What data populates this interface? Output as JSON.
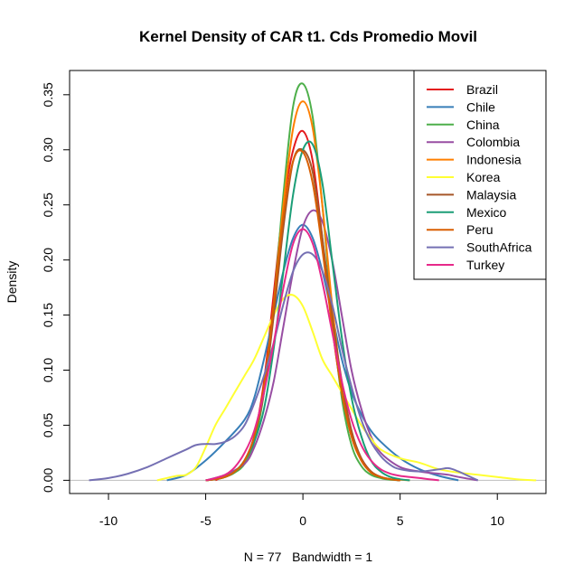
{
  "chart_data": {
    "type": "line",
    "title": "Kernel Density of CAR t1. Cds Promedio Movil",
    "xlabel": "N = 77   Bandwidth = 1",
    "ylabel": "Density",
    "xlim": [
      -12,
      12.5
    ],
    "ylim": [
      -0.012,
      0.372
    ],
    "x_ticks": [
      -10,
      -5,
      0,
      5,
      10
    ],
    "x_tick_labels": [
      "-10",
      "-5",
      "0",
      "5",
      "10"
    ],
    "y_ticks": [
      0.0,
      0.05,
      0.1,
      0.15,
      0.2,
      0.25,
      0.3,
      0.35
    ],
    "y_tick_labels": [
      "0.00",
      "0.05",
      "0.10",
      "0.15",
      "0.20",
      "0.25",
      "0.30",
      "0.35"
    ],
    "baseline": 0,
    "baseline_color": "#bebebe",
    "legend_position": "top-right",
    "series": [
      {
        "name": "Brazil",
        "color": "#e41a1c",
        "x": [
          -4.5,
          -4,
          -3.5,
          -3,
          -2.5,
          -2,
          -1.5,
          -1,
          -0.5,
          0,
          0.5,
          1,
          1.5,
          2,
          2.5,
          3,
          3.5,
          4,
          4.5,
          5
        ],
        "y": [
          0.0,
          0.004,
          0.008,
          0.018,
          0.04,
          0.09,
          0.17,
          0.25,
          0.3,
          0.317,
          0.29,
          0.22,
          0.14,
          0.08,
          0.04,
          0.02,
          0.008,
          0.003,
          0.001,
          0.0
        ]
      },
      {
        "name": "Chile",
        "color": "#377eb8",
        "x": [
          -7,
          -6,
          -5,
          -4,
          -3,
          -2.5,
          -2,
          -1.5,
          -1,
          -0.5,
          0,
          0.5,
          1,
          1.5,
          2,
          2.5,
          3,
          3.5,
          4,
          5,
          6,
          7,
          8
        ],
        "y": [
          0.0,
          0.005,
          0.018,
          0.035,
          0.055,
          0.075,
          0.11,
          0.15,
          0.19,
          0.22,
          0.232,
          0.22,
          0.19,
          0.15,
          0.11,
          0.08,
          0.06,
          0.045,
          0.035,
          0.02,
          0.01,
          0.004,
          0.0
        ]
      },
      {
        "name": "China",
        "color": "#4daf4a",
        "x": [
          -5,
          -4.5,
          -4,
          -3.5,
          -3,
          -2.5,
          -2,
          -1.5,
          -1,
          -0.5,
          0,
          0.5,
          1,
          1.5,
          2,
          2.5,
          3,
          3.5,
          4,
          4.5,
          5
        ],
        "y": [
          0.0,
          0.001,
          0.003,
          0.007,
          0.015,
          0.035,
          0.08,
          0.16,
          0.26,
          0.34,
          0.36,
          0.33,
          0.25,
          0.15,
          0.075,
          0.032,
          0.013,
          0.005,
          0.002,
          0.0005,
          0.0
        ]
      },
      {
        "name": "Colombia",
        "color": "#984ea3",
        "x": [
          -5,
          -4,
          -3,
          -2.5,
          -2,
          -1.5,
          -1,
          -0.5,
          0,
          0.5,
          1,
          1.5,
          2,
          2.5,
          3,
          3.5,
          4,
          5,
          6,
          7,
          7.5,
          8,
          9
        ],
        "y": [
          0.0,
          0.005,
          0.015,
          0.03,
          0.055,
          0.09,
          0.14,
          0.19,
          0.23,
          0.245,
          0.235,
          0.2,
          0.15,
          0.1,
          0.065,
          0.04,
          0.025,
          0.012,
          0.008,
          0.006,
          0.005,
          0.003,
          0.0
        ]
      },
      {
        "name": "Indonesia",
        "color": "#ff7f00",
        "x": [
          -5,
          -4.5,
          -4,
          -3.5,
          -3,
          -2.5,
          -2,
          -1.5,
          -1,
          -0.5,
          0,
          0.5,
          1,
          1.5,
          2,
          2.5,
          3,
          3.5,
          4,
          4.5,
          5,
          5.5
        ],
        "y": [
          0.0,
          0.001,
          0.003,
          0.008,
          0.018,
          0.04,
          0.085,
          0.16,
          0.25,
          0.32,
          0.344,
          0.32,
          0.25,
          0.16,
          0.085,
          0.04,
          0.018,
          0.008,
          0.003,
          0.001,
          0.0005,
          0.0
        ]
      },
      {
        "name": "Korea",
        "color": "#ffff33",
        "x": [
          -7.5,
          -6.5,
          -6,
          -5.5,
          -5,
          -4.5,
          -4,
          -3.5,
          -3,
          -2.5,
          -2,
          -1.5,
          -1,
          -0.5,
          0,
          0.5,
          1,
          1.5,
          2,
          2.5,
          3,
          3.5,
          4,
          5,
          6,
          7,
          8,
          9,
          10,
          11,
          12
        ],
        "y": [
          0.0,
          0.004,
          0.005,
          0.012,
          0.03,
          0.05,
          0.065,
          0.08,
          0.095,
          0.11,
          0.13,
          0.15,
          0.165,
          0.168,
          0.158,
          0.135,
          0.11,
          0.095,
          0.08,
          0.065,
          0.05,
          0.038,
          0.028,
          0.02,
          0.016,
          0.01,
          0.007,
          0.005,
          0.003,
          0.001,
          0.0
        ]
      },
      {
        "name": "Malaysia",
        "color": "#a65628",
        "x": [
          -5,
          -4.5,
          -4,
          -3.5,
          -3,
          -2.5,
          -2,
          -1.5,
          -1,
          -0.5,
          0,
          0.5,
          1,
          1.5,
          2,
          2.5,
          3,
          3.5,
          4,
          4.5,
          5
        ],
        "y": [
          0.0,
          0.001,
          0.003,
          0.008,
          0.018,
          0.04,
          0.08,
          0.15,
          0.23,
          0.29,
          0.3,
          0.28,
          0.22,
          0.15,
          0.09,
          0.045,
          0.02,
          0.008,
          0.003,
          0.001,
          0.0
        ]
      },
      {
        "name": "Mexico",
        "color": "#1b9e77",
        "x": [
          -5,
          -4.5,
          -4,
          -3.5,
          -3,
          -2.5,
          -2,
          -1.5,
          -1,
          -0.5,
          0,
          0.5,
          1,
          1.5,
          2,
          2.5,
          3,
          3.5,
          4,
          4.5,
          5,
          5.5
        ],
        "y": [
          0.0,
          0.001,
          0.003,
          0.008,
          0.018,
          0.035,
          0.065,
          0.12,
          0.19,
          0.26,
          0.3,
          0.305,
          0.27,
          0.2,
          0.13,
          0.075,
          0.04,
          0.018,
          0.008,
          0.003,
          0.001,
          0.0
        ]
      },
      {
        "name": "Peru",
        "color": "#d95f02",
        "x": [
          -5,
          -4.5,
          -4,
          -3.5,
          -3,
          -2.5,
          -2,
          -1.5,
          -1,
          -0.5,
          0,
          0.5,
          1,
          1.5,
          2,
          2.5,
          3,
          3.5,
          4,
          4.5,
          5
        ],
        "y": [
          0.0,
          0.001,
          0.003,
          0.008,
          0.018,
          0.04,
          0.085,
          0.16,
          0.24,
          0.29,
          0.298,
          0.27,
          0.21,
          0.14,
          0.08,
          0.04,
          0.018,
          0.007,
          0.003,
          0.001,
          0.0
        ]
      },
      {
        "name": "SouthAfrica",
        "color": "#7570b3",
        "x": [
          -11,
          -10,
          -9,
          -8,
          -7,
          -6,
          -5.5,
          -5,
          -4.5,
          -4,
          -3.5,
          -3,
          -2.5,
          -2,
          -1.5,
          -1,
          -0.5,
          0,
          0.5,
          1,
          1.5,
          2,
          2.5,
          3,
          3.5,
          4,
          4.5,
          5,
          6,
          7,
          7.5,
          8,
          8.5,
          9
        ],
        "y": [
          0.0,
          0.002,
          0.006,
          0.012,
          0.02,
          0.028,
          0.032,
          0.033,
          0.033,
          0.035,
          0.04,
          0.05,
          0.07,
          0.095,
          0.125,
          0.16,
          0.19,
          0.205,
          0.205,
          0.19,
          0.16,
          0.12,
          0.085,
          0.055,
          0.035,
          0.022,
          0.014,
          0.01,
          0.008,
          0.01,
          0.011,
          0.008,
          0.004,
          0.0
        ]
      },
      {
        "name": "Turkey",
        "color": "#e7298a",
        "x": [
          -5,
          -4.5,
          -4,
          -3.5,
          -3,
          -2.5,
          -2,
          -1.5,
          -1,
          -0.5,
          0,
          0.5,
          1,
          1.5,
          2,
          2.5,
          3,
          3.5,
          4,
          4.5,
          5,
          5.5,
          6,
          6.5,
          7
        ],
        "y": [
          0.0,
          0.002,
          0.005,
          0.012,
          0.025,
          0.045,
          0.08,
          0.125,
          0.175,
          0.215,
          0.228,
          0.215,
          0.18,
          0.135,
          0.09,
          0.055,
          0.032,
          0.018,
          0.01,
          0.006,
          0.004,
          0.003,
          0.002,
          0.001,
          0.0
        ]
      }
    ]
  }
}
